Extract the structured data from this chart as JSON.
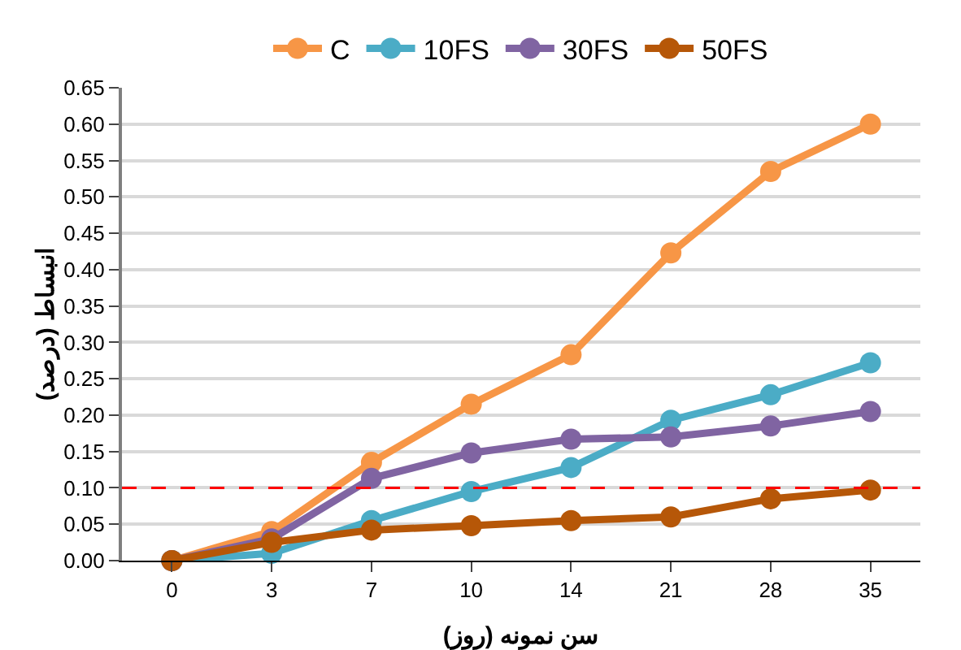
{
  "chart_data": {
    "type": "line",
    "xlabel": "سن نمونه (روز)",
    "ylabel": "انبساط (درصد)",
    "categories": [
      "0",
      "3",
      "7",
      "10",
      "14",
      "21",
      "28",
      "35"
    ],
    "series": [
      {
        "name": "C",
        "color": "#f79646",
        "values": [
          0,
          0.04,
          0.135,
          0.215,
          0.283,
          0.423,
          0.535,
          0.6
        ]
      },
      {
        "name": "10FS",
        "color": "#4bacc6",
        "values": [
          0,
          0.01,
          0.055,
          0.095,
          0.128,
          0.193,
          0.228,
          0.272
        ]
      },
      {
        "name": "30FS",
        "color": "#8064a2",
        "values": [
          0,
          0.03,
          0.113,
          0.148,
          0.167,
          0.17,
          0.185,
          0.205
        ]
      },
      {
        "name": "50FS",
        "color": "#b65708",
        "values": [
          0,
          0.025,
          0.042,
          0.048,
          0.055,
          0.06,
          0.085,
          0.097
        ]
      }
    ],
    "ylim": [
      0,
      0.65
    ],
    "yticks": [
      {
        "value": 0,
        "label": "0.00"
      },
      {
        "value": 0.05,
        "label": "0.05"
      },
      {
        "value": 0.1,
        "label": "0.10"
      },
      {
        "value": 0.15,
        "label": "0.15"
      },
      {
        "value": 0.2,
        "label": "0.20"
      },
      {
        "value": 0.25,
        "label": "0.25"
      },
      {
        "value": 0.3,
        "label": "0.30"
      },
      {
        "value": 0.35,
        "label": "0.35"
      },
      {
        "value": 0.4,
        "label": "0.40"
      },
      {
        "value": 0.45,
        "label": "0.45"
      },
      {
        "value": 0.5,
        "label": "0.50"
      },
      {
        "value": 0.55,
        "label": "0.55"
      },
      {
        "value": 0.6,
        "label": "0.60"
      },
      {
        "value": 0.65,
        "label": "0.65"
      }
    ],
    "ref_lines": [
      {
        "axis": "y",
        "value": 0.1,
        "color": "#ff0000",
        "line_style": "dashed"
      }
    ],
    "grid": "y",
    "legend": "top",
    "marker": "circle",
    "line_style": "solid"
  }
}
